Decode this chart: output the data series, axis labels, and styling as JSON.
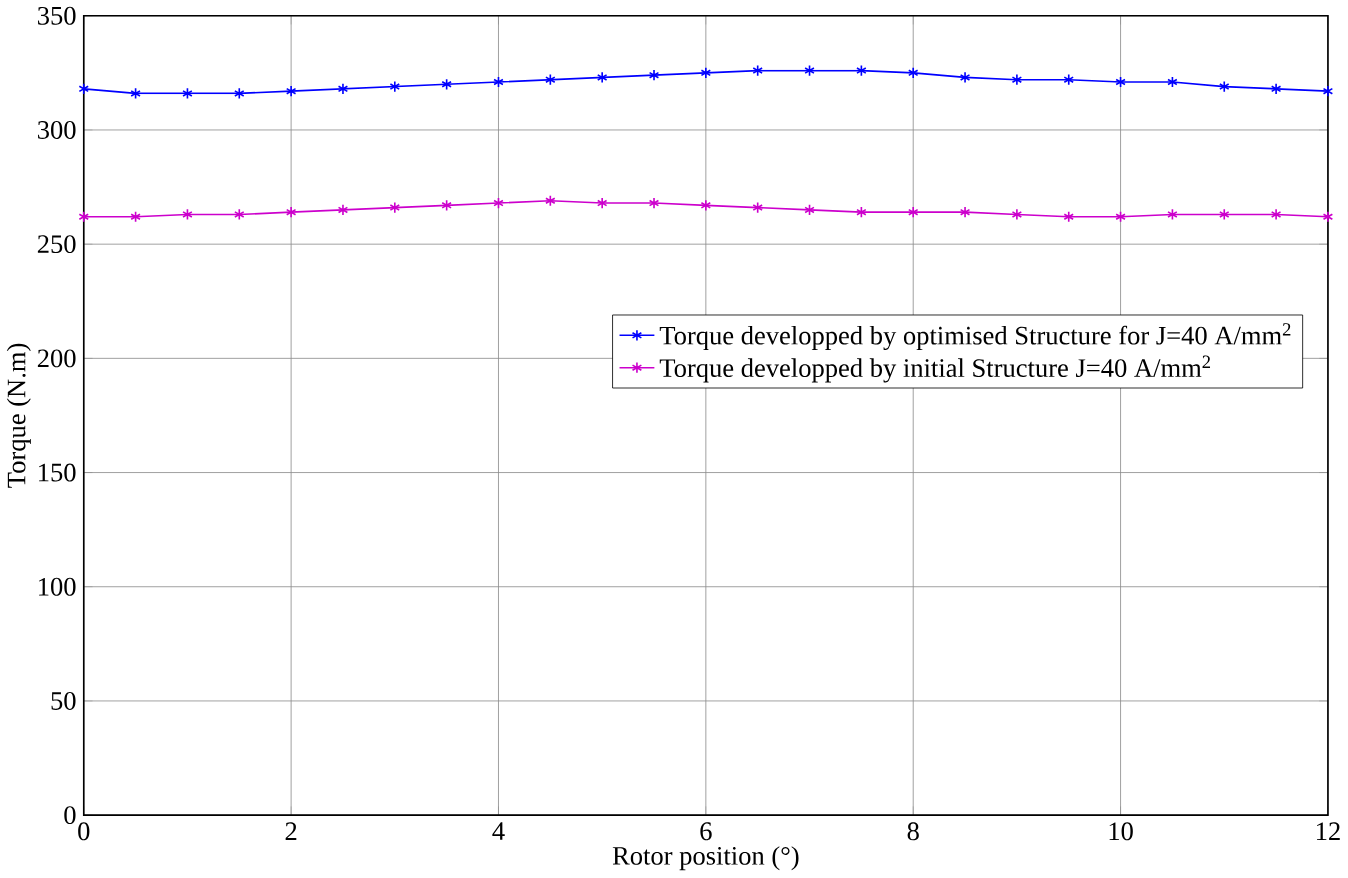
{
  "chart_data": {
    "type": "line",
    "xlabel": "Rotor position (°)",
    "ylabel": "Torque (N.m)",
    "x": [
      0,
      0.5,
      1,
      1.5,
      2,
      2.5,
      3,
      3.5,
      4,
      4.5,
      5,
      5.5,
      6,
      6.5,
      7,
      7.5,
      8,
      8.5,
      9,
      9.5,
      10,
      10.5,
      11,
      11.5,
      12
    ],
    "series": [
      {
        "name": "Torque developped by optimised Structure for J=40 A/mm$^{2}$",
        "color": "#0000ff",
        "values": [
          318,
          316,
          316,
          316,
          317,
          318,
          319,
          320,
          321,
          322,
          323,
          324,
          325,
          326,
          326,
          326,
          325,
          323,
          322,
          322,
          321,
          321,
          319,
          318,
          317
        ]
      },
      {
        "name": "Torque developped by initial Structure J=40 A/mm$^{2}$",
        "color": "#cc00cc",
        "values": [
          262,
          262,
          263,
          263,
          264,
          265,
          266,
          267,
          268,
          269,
          268,
          268,
          267,
          266,
          265,
          264,
          264,
          264,
          263,
          262,
          262,
          263,
          263,
          263,
          262
        ]
      }
    ],
    "xlim": [
      0,
      12
    ],
    "ylim": [
      0,
      350
    ],
    "xticks": [
      0,
      2,
      4,
      6,
      8,
      10,
      12
    ],
    "yticks": [
      0,
      50,
      100,
      150,
      200,
      250,
      300,
      350
    ],
    "grid": true,
    "legend": "right",
    "marker": "cross",
    "line_style": "solid"
  }
}
